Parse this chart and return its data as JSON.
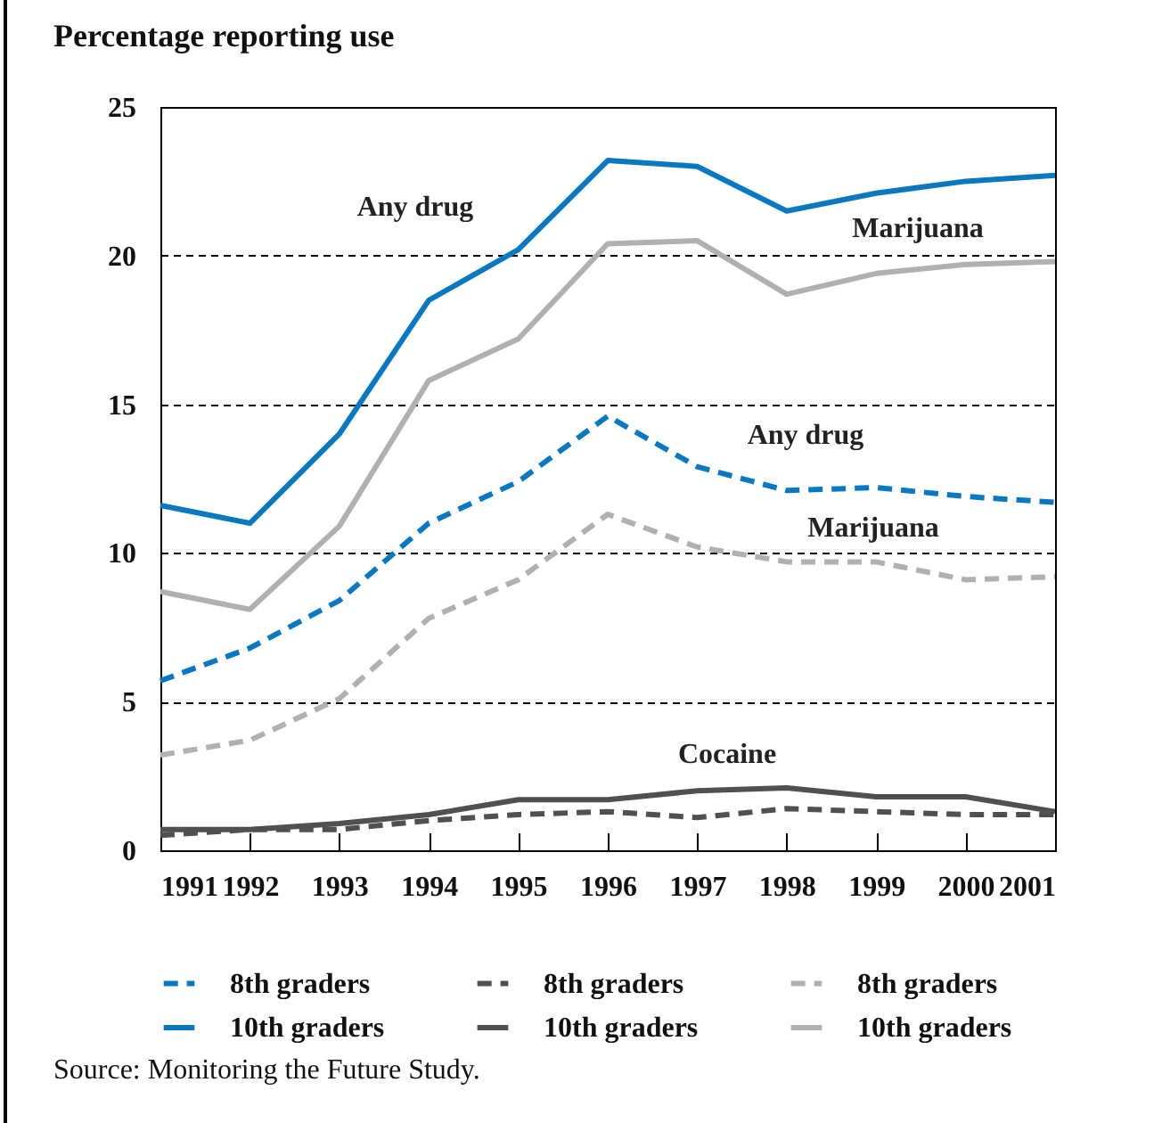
{
  "chart_data": {
    "type": "line",
    "title": "Percentage reporting use",
    "x": [
      1991,
      1992,
      1993,
      1994,
      1995,
      1996,
      1997,
      1998,
      1999,
      2000,
      2001
    ],
    "series": [
      {
        "name": "8th graders",
        "color": "#0a78c0",
        "line_style": "dashed",
        "values": [
          5.7,
          6.8,
          8.4,
          11.0,
          12.4,
          14.6,
          12.9,
          12.1,
          12.2,
          11.9,
          11.7
        ]
      },
      {
        "name": "8th graders",
        "color": "#505050",
        "line_style": "dashed",
        "values": [
          0.5,
          0.7,
          0.7,
          1.0,
          1.2,
          1.3,
          1.1,
          1.4,
          1.3,
          1.2,
          1.2
        ]
      },
      {
        "name": "8th graders",
        "color": "#b0b0b0",
        "line_style": "dashed",
        "values": [
          3.2,
          3.7,
          5.1,
          7.8,
          9.1,
          11.3,
          10.2,
          9.7,
          9.7,
          9.1,
          9.2
        ]
      },
      {
        "name": "10th graders",
        "color": "#0a78c0",
        "line_style": "solid",
        "values": [
          11.6,
          11.0,
          14.0,
          18.5,
          20.2,
          23.2,
          23.0,
          21.5,
          22.1,
          22.5,
          22.7
        ]
      },
      {
        "name": "10th graders",
        "color": "#505050",
        "line_style": "solid",
        "values": [
          0.7,
          0.7,
          0.9,
          1.2,
          1.7,
          1.7,
          2.0,
          2.1,
          1.8,
          1.8,
          1.3
        ]
      },
      {
        "name": "10th graders",
        "color": "#b0b0b0",
        "line_style": "solid",
        "values": [
          8.7,
          8.1,
          10.9,
          15.8,
          17.2,
          20.4,
          20.5,
          18.7,
          19.4,
          19.7,
          19.8
        ]
      }
    ],
    "xlim": [
      1991,
      2001
    ],
    "xticks": [
      1991,
      1992,
      1993,
      1994,
      1995,
      1996,
      1997,
      1998,
      1999,
      2000,
      2001
    ],
    "ylim": [
      0,
      25
    ],
    "yticks": [
      0,
      5,
      10,
      15,
      20,
      25
    ],
    "grid": "y",
    "legend": "bottom",
    "annotations": [
      "Any drug",
      "Marijuana",
      "Any drug",
      "Marijuana",
      "Cocaine",
      "Source: Monitoring the Future Study."
    ]
  }
}
